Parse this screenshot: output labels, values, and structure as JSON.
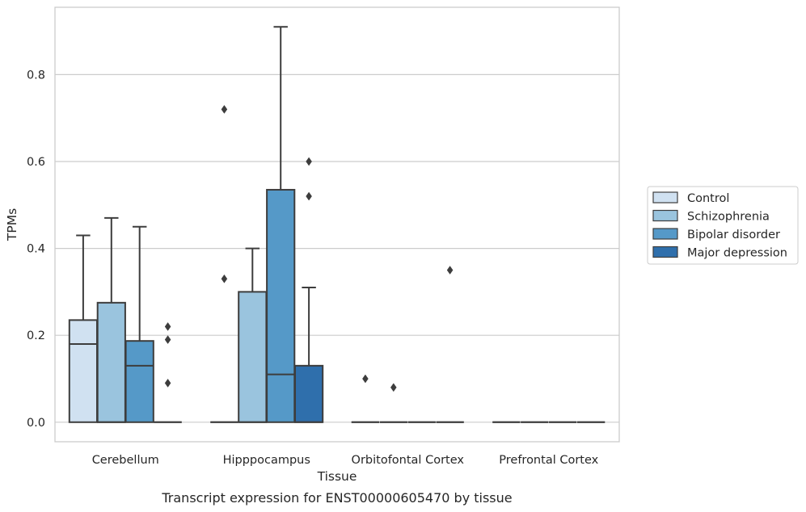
{
  "chart_data": {
    "type": "box",
    "title": "",
    "caption": "Transcript expression for ENST00000605470 by tissue",
    "xlabel": "Tissue",
    "ylabel": "TPMs",
    "ylim": [
      -0.045,
      0.955
    ],
    "yticks": [
      0.0,
      0.2,
      0.4,
      0.6,
      0.8
    ],
    "ytick_labels": [
      "0.0",
      "0.2",
      "0.4",
      "0.6",
      "0.8"
    ],
    "grid": "horizontal",
    "legend_position": "right",
    "categories": [
      "Cerebellum",
      "Hipppocampus",
      "Orbitofontal Cortex",
      "Prefrontal Cortex"
    ],
    "series": [
      {
        "name": "Control",
        "color": "#d0e1f1",
        "boxes": [
          {
            "q1": 0.0,
            "median": 0.18,
            "q3": 0.235,
            "whisker_low": 0.0,
            "whisker_high": 0.43,
            "outliers": []
          },
          {
            "q1": 0.0,
            "median": 0.0,
            "q3": 0.0,
            "whisker_low": 0.0,
            "whisker_high": 0.0,
            "outliers": [
              0.72,
              0.33
            ]
          },
          {
            "q1": 0.0,
            "median": 0.0,
            "q3": 0.0,
            "whisker_low": 0.0,
            "whisker_high": 0.0,
            "outliers": [
              0.1
            ]
          },
          {
            "q1": 0.0,
            "median": 0.0,
            "q3": 0.0,
            "whisker_low": 0.0,
            "whisker_high": 0.0,
            "outliers": []
          }
        ]
      },
      {
        "name": "Schizophrenia",
        "color": "#9ac4de",
        "boxes": [
          {
            "q1": 0.0,
            "median": 0.0,
            "q3": 0.275,
            "whisker_low": 0.0,
            "whisker_high": 0.47,
            "outliers": []
          },
          {
            "q1": 0.0,
            "median": 0.0,
            "q3": 0.3,
            "whisker_low": 0.0,
            "whisker_high": 0.4,
            "outliers": []
          },
          {
            "q1": 0.0,
            "median": 0.0,
            "q3": 0.0,
            "whisker_low": 0.0,
            "whisker_high": 0.0,
            "outliers": [
              0.08
            ]
          },
          {
            "q1": 0.0,
            "median": 0.0,
            "q3": 0.0,
            "whisker_low": 0.0,
            "whisker_high": 0.0,
            "outliers": []
          }
        ]
      },
      {
        "name": "Bipolar disorder",
        "color": "#5599c8",
        "boxes": [
          {
            "q1": 0.0,
            "median": 0.13,
            "q3": 0.187,
            "whisker_low": 0.0,
            "whisker_high": 0.45,
            "outliers": []
          },
          {
            "q1": 0.0,
            "median": 0.11,
            "q3": 0.535,
            "whisker_low": 0.0,
            "whisker_high": 0.91,
            "outliers": []
          },
          {
            "q1": 0.0,
            "median": 0.0,
            "q3": 0.0,
            "whisker_low": 0.0,
            "whisker_high": 0.0,
            "outliers": []
          },
          {
            "q1": 0.0,
            "median": 0.0,
            "q3": 0.0,
            "whisker_low": 0.0,
            "whisker_high": 0.0,
            "outliers": []
          }
        ]
      },
      {
        "name": "Major depression",
        "color": "#2f6fac",
        "boxes": [
          {
            "q1": 0.0,
            "median": 0.0,
            "q3": 0.0,
            "whisker_low": 0.0,
            "whisker_high": 0.0,
            "outliers": [
              0.22,
              0.19,
              0.09
            ]
          },
          {
            "q1": 0.0,
            "median": 0.0,
            "q3": 0.13,
            "whisker_low": 0.0,
            "whisker_high": 0.31,
            "outliers": [
              0.6,
              0.52
            ]
          },
          {
            "q1": 0.0,
            "median": 0.0,
            "q3": 0.0,
            "whisker_low": 0.0,
            "whisker_high": 0.0,
            "outliers": [
              0.35
            ]
          },
          {
            "q1": 0.0,
            "median": 0.0,
            "q3": 0.0,
            "whisker_low": 0.0,
            "whisker_high": 0.0,
            "outliers": []
          }
        ]
      }
    ]
  },
  "colors": {
    "grid": "#cccccc",
    "frame": "#cccccc",
    "line": "#3d3d3d",
    "text": "#262626"
  }
}
